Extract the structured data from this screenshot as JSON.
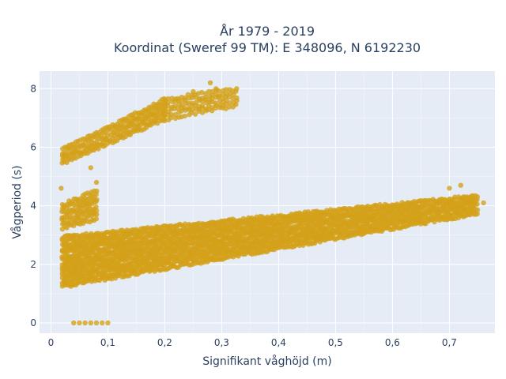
{
  "chart_data": {
    "type": "scatter",
    "title_line1": "År 1979 - 2019",
    "title_line2": "Koordinat (Sweref 99 TM): E 348096, N 6192230",
    "xlabel": "Signifikant våghöjd (m)",
    "ylabel": "Vågperiod (s)",
    "xlim": [
      -0.02,
      0.78
    ],
    "ylim": [
      -0.35,
      8.6
    ],
    "x_ticks": [
      0,
      0.1,
      0.2,
      0.3,
      0.4,
      0.5,
      0.6,
      0.7
    ],
    "x_tick_labels": [
      "0",
      "0,1",
      "0,2",
      "0,3",
      "0,4",
      "0,5",
      "0,6",
      "0,7"
    ],
    "y_ticks": [
      0,
      2,
      4,
      6,
      8
    ],
    "y_tick_labels": [
      "0",
      "2",
      "4",
      "6",
      "8"
    ],
    "grid": true,
    "marker_color": "#D4A017",
    "background": "#E5ECF6",
    "clusters": [
      {
        "x_range": [
          0.02,
          0.2
        ],
        "y_lower_start": 5.4,
        "y_lower_end": 6.9,
        "y_upper_start": 6.0,
        "y_upper_end": 7.7,
        "x_step": 0.004
      },
      {
        "x_range": [
          0.2,
          0.33
        ],
        "y_lower_start": 6.9,
        "y_lower_end": 7.4,
        "y_upper_start": 7.7,
        "y_upper_end": 8.1,
        "x_step": 0.006
      },
      {
        "x_range": [
          0.02,
          0.08
        ],
        "y_lower_start": 3.2,
        "y_lower_end": 3.5,
        "y_upper_start": 4.1,
        "y_upper_end": 4.6,
        "x_step": 0.004
      },
      {
        "x_range": [
          0.02,
          0.75
        ],
        "y_lower_start": 1.2,
        "y_lower_end": 3.7,
        "y_upper_start": 3.0,
        "y_upper_end": 4.4,
        "x_step": 0.003
      }
    ],
    "extra_points": [
      {
        "x": 0.04,
        "y": 0
      },
      {
        "x": 0.05,
        "y": 0
      },
      {
        "x": 0.06,
        "y": 0
      },
      {
        "x": 0.07,
        "y": 0
      },
      {
        "x": 0.08,
        "y": 0
      },
      {
        "x": 0.09,
        "y": 0
      },
      {
        "x": 0.1,
        "y": 0
      },
      {
        "x": 0.018,
        "y": 4.6
      },
      {
        "x": 0.07,
        "y": 5.3
      },
      {
        "x": 0.08,
        "y": 4.8
      },
      {
        "x": 0.28,
        "y": 8.2
      },
      {
        "x": 0.29,
        "y": 8.0
      },
      {
        "x": 0.25,
        "y": 7.9
      },
      {
        "x": 0.72,
        "y": 4.7
      },
      {
        "x": 0.7,
        "y": 4.6
      },
      {
        "x": 0.74,
        "y": 4.2
      },
      {
        "x": 0.76,
        "y": 4.1
      },
      {
        "x": 0.73,
        "y": 4.1
      },
      {
        "x": 0.71,
        "y": 4.0
      }
    ]
  }
}
